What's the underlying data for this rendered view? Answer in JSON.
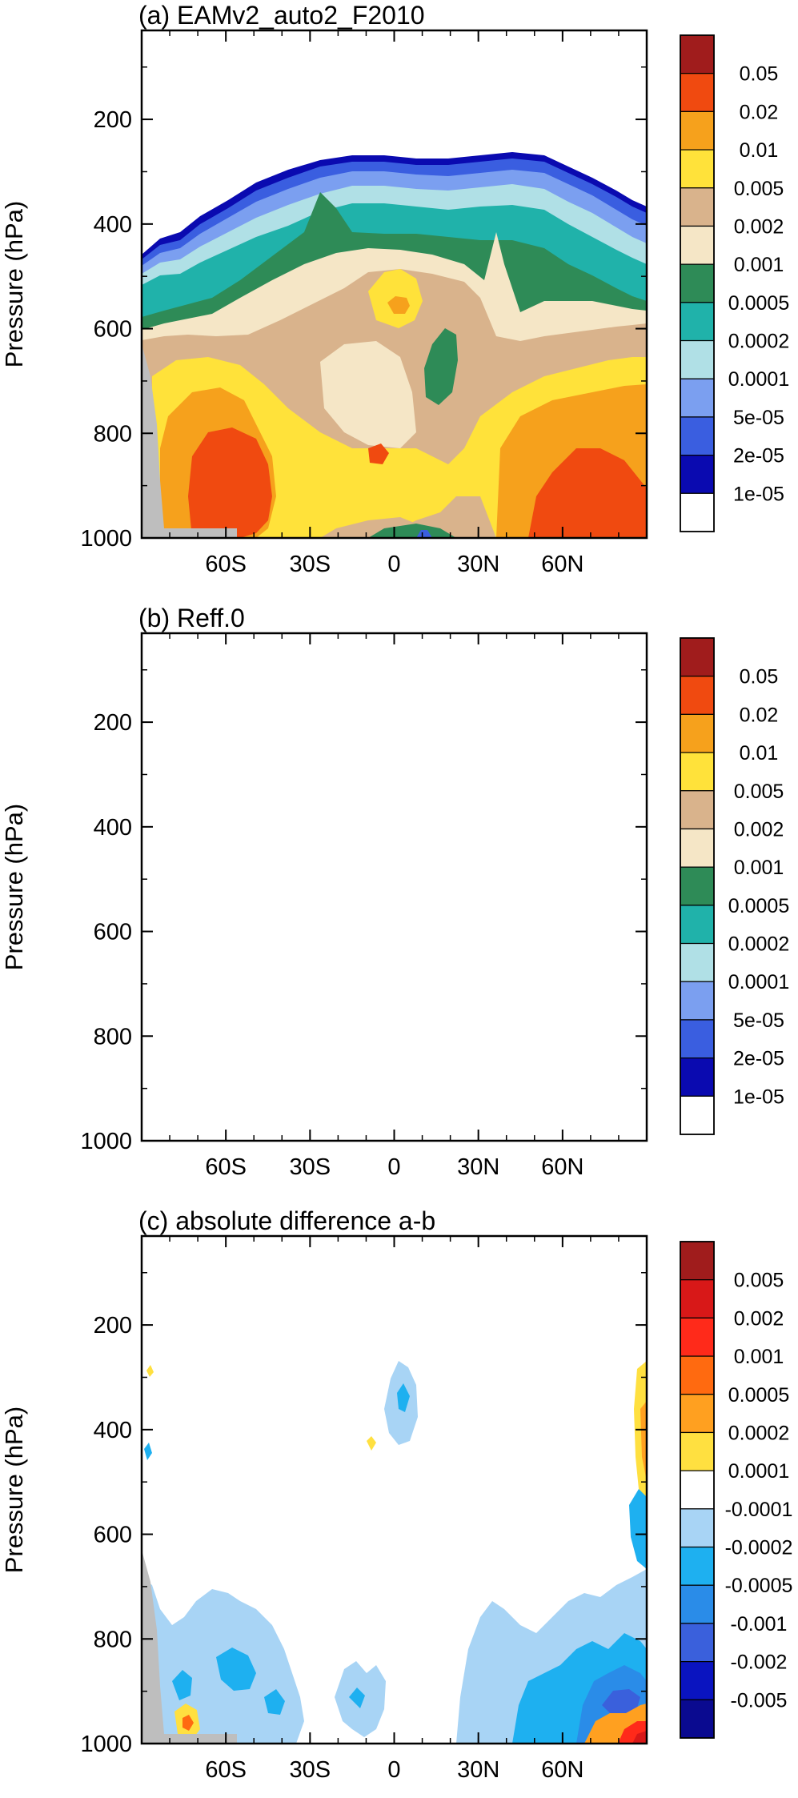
{
  "chart_data": [
    {
      "type": "heatmap",
      "panel": "a",
      "title": "(a) EAMv2_auto2_F2010",
      "ylabel": "Pressure (hPa)",
      "x_ticks": [
        "60S",
        "30S",
        "0",
        "30N",
        "60N"
      ],
      "x_tick_values": [
        -60,
        -30,
        0,
        30,
        60
      ],
      "xlim": [
        -90,
        90
      ],
      "y_ticks": [
        "200",
        "400",
        "600",
        "800",
        "1000"
      ],
      "y_tick_values": [
        200,
        400,
        600,
        800,
        1000
      ],
      "ylim": [
        1000,
        30
      ],
      "colorbar_levels": [
        "0.05",
        "0.02",
        "0.01",
        "0.005",
        "0.002",
        "0.001",
        "0.0005",
        "0.0002",
        "0.0001",
        "5e-05",
        "2e-05",
        "1e-05"
      ],
      "colorbar_colors": [
        "#a01c1c",
        "#f04a10",
        "#f6a11c",
        "#ffe23a",
        "#d9b38c",
        "#f5e6c6",
        "#2e8b57",
        "#20b2aa",
        "#b0e0e6",
        "#7b9ff0",
        "#3a5ee0",
        "#0a0ab0",
        "#ffffff"
      ]
    },
    {
      "type": "heatmap",
      "panel": "b",
      "title": "(b) Reff.0",
      "ylabel": "Pressure (hPa)",
      "x_ticks": [
        "60S",
        "30S",
        "0",
        "30N",
        "60N"
      ],
      "x_tick_values": [
        -60,
        -30,
        0,
        30,
        60
      ],
      "xlim": [
        -90,
        90
      ],
      "y_ticks": [
        "200",
        "400",
        "600",
        "800",
        "1000"
      ],
      "y_tick_values": [
        200,
        400,
        600,
        800,
        1000
      ],
      "ylim": [
        1000,
        30
      ],
      "colorbar_levels": [
        "0.05",
        "0.02",
        "0.01",
        "0.005",
        "0.002",
        "0.001",
        "0.0005",
        "0.0002",
        "0.0001",
        "5e-05",
        "2e-05",
        "1e-05"
      ],
      "colorbar_colors": [
        "#a01c1c",
        "#f04a10",
        "#f6a11c",
        "#ffe23a",
        "#d9b38c",
        "#f5e6c6",
        "#2e8b57",
        "#20b2aa",
        "#b0e0e6",
        "#7b9ff0",
        "#3a5ee0",
        "#0a0ab0",
        "#ffffff"
      ]
    },
    {
      "type": "heatmap",
      "panel": "c",
      "title": "(c) absolute difference a-b",
      "ylabel": "Pressure (hPa)",
      "x_ticks": [
        "60S",
        "30S",
        "0",
        "30N",
        "60N"
      ],
      "x_tick_values": [
        -60,
        -30,
        0,
        30,
        60
      ],
      "xlim": [
        -90,
        90
      ],
      "y_ticks": [
        "200",
        "400",
        "600",
        "800",
        "1000"
      ],
      "y_tick_values": [
        200,
        400,
        600,
        800,
        1000
      ],
      "ylim": [
        1000,
        30
      ],
      "colorbar_levels": [
        "0.005",
        "0.002",
        "0.001",
        "0.0005",
        "0.0002",
        "0.0001",
        "-0.0001",
        "-0.0002",
        "-0.0005",
        "-0.001",
        "-0.002",
        "-0.005"
      ],
      "colorbar_colors": [
        "#a01c1c",
        "#d81818",
        "#ff2a1a",
        "#ff6a10",
        "#ffa020",
        "#ffe040",
        "#ffffff",
        "#a8d4f5",
        "#1eb0f0",
        "#2a8ce8",
        "#3a60dc",
        "#0a14c0",
        "#0a0a90"
      ]
    }
  ]
}
